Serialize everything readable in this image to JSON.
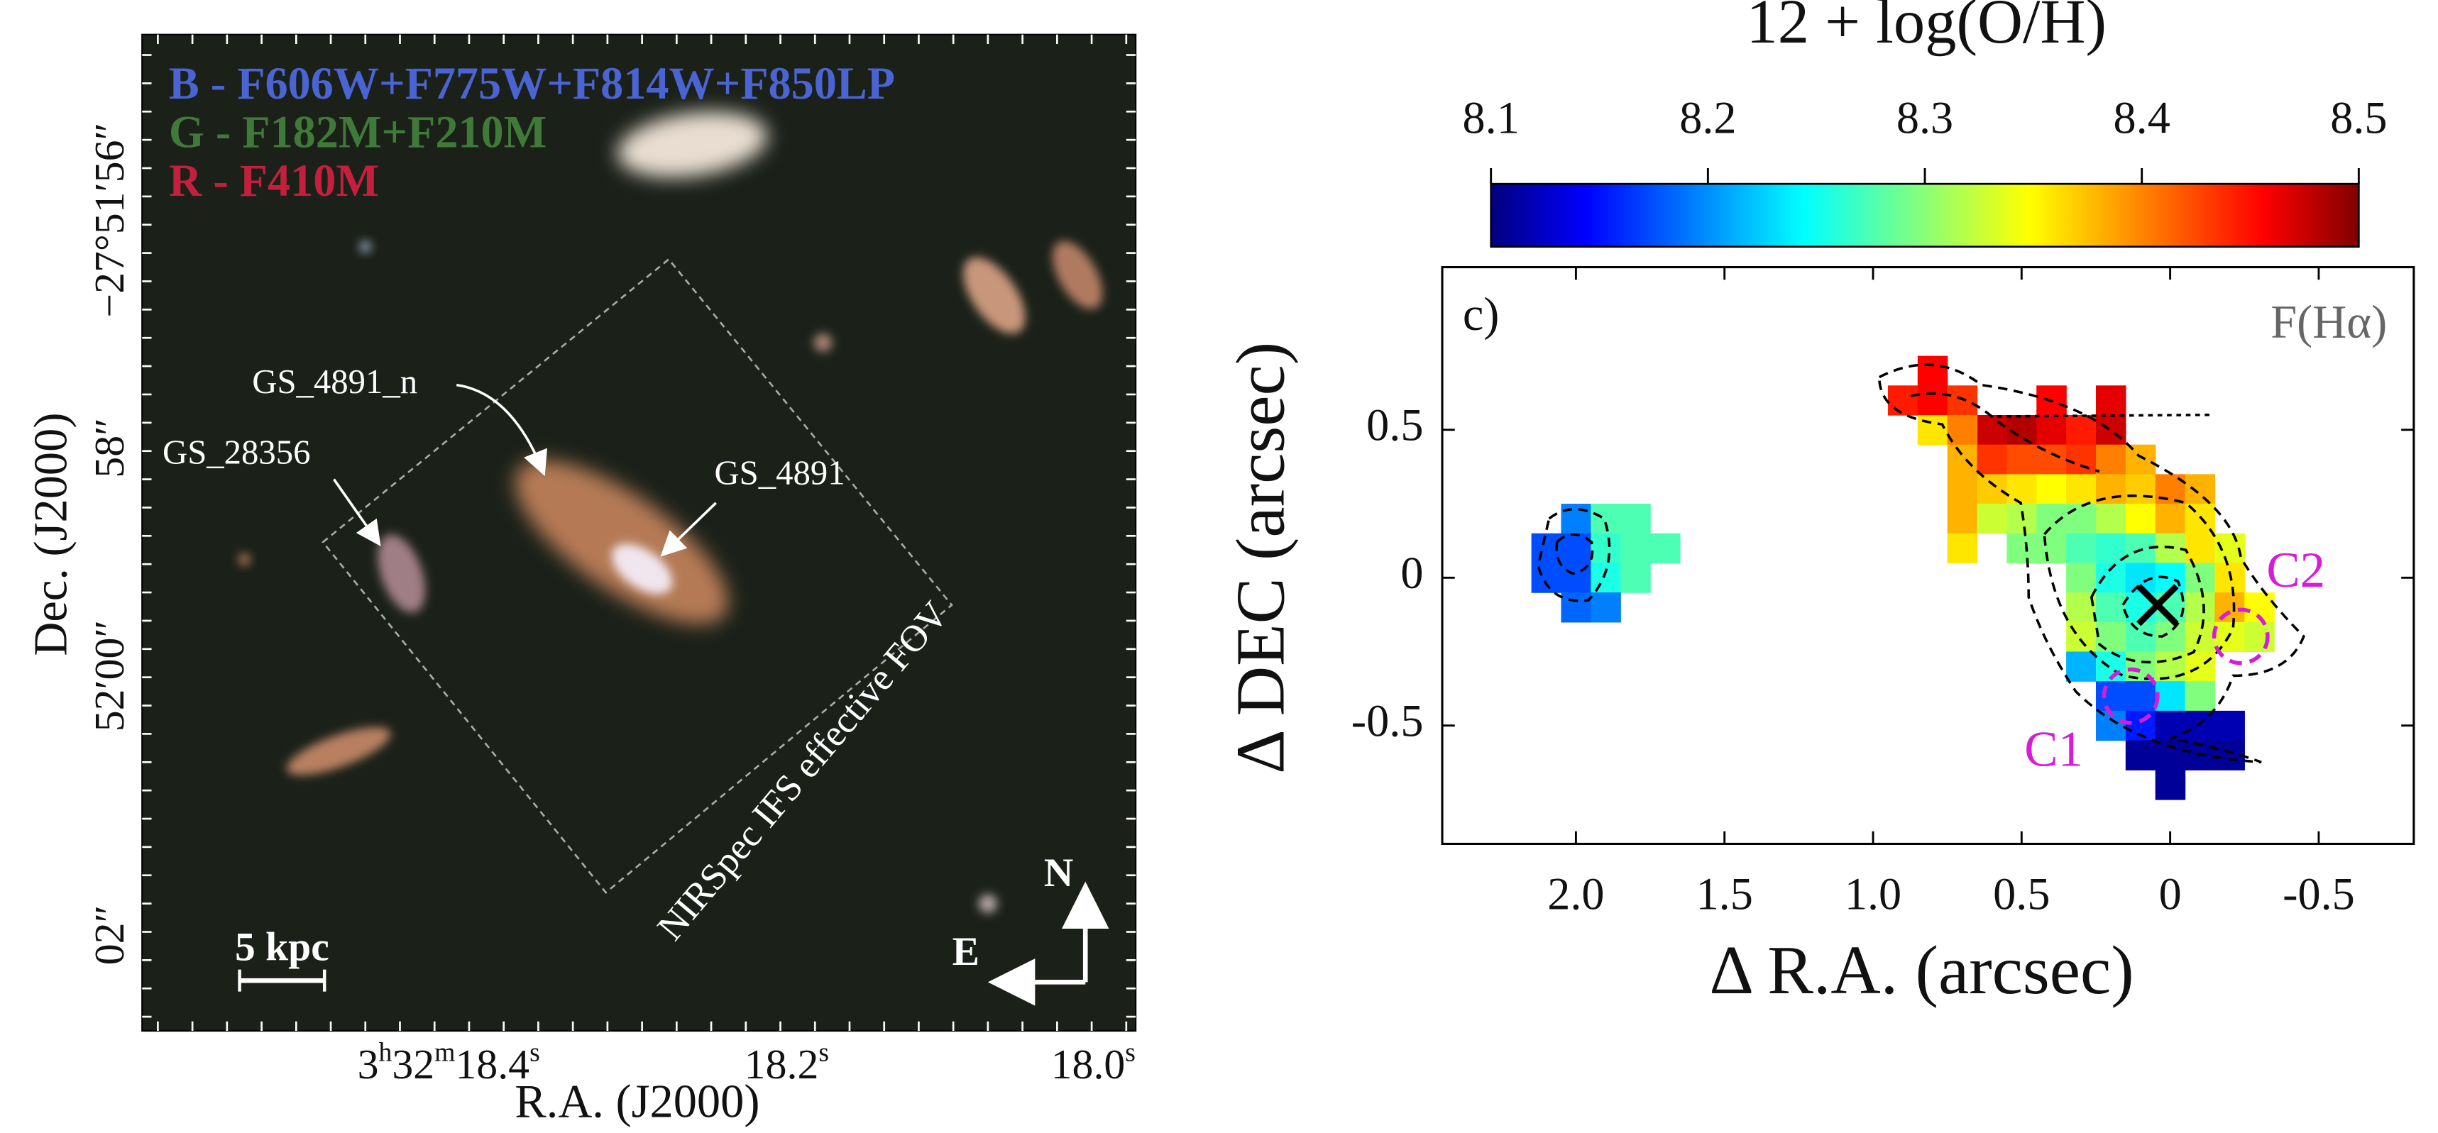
{
  "left_panel": {
    "legend": [
      {
        "text": "B - F606W+F775W+F814W+F850LP",
        "color": "#4a64d4"
      },
      {
        "text": "G - F182M+F210M",
        "color": "#3f7a38"
      },
      {
        "text": "R - F410M",
        "color": "#c4203e"
      }
    ],
    "labels": [
      "GS_4891_n",
      "GS_28356",
      "GS_4891"
    ],
    "fov_label": "NIRSpec IFS effective FOV",
    "scale_bar": "5 kpc",
    "compass": [
      "N",
      "E"
    ],
    "xlabel": "R.A. (J2000)",
    "ylabel": "Dec. (J2000)",
    "xticks": [
      [
        "3",
        "h",
        "32",
        "m",
        "18.4",
        "s"
      ],
      [
        "18.2",
        "s"
      ],
      [
        "18.0",
        "s"
      ]
    ],
    "yticks": [
      "−27°51′56″",
      "58″",
      "52′00″",
      "02″"
    ]
  },
  "chart_data": {
    "type": "heatmap",
    "colorbar_label": "12 + log(O/H)",
    "panel_label": "c)",
    "annotation": "F(Hα)",
    "clump_labels": [
      "C1",
      "C2"
    ],
    "xlabel": "Δ R.A. (arcsec)",
    "ylabel": "Δ DEC (arcsec)",
    "xlim": [
      2.45,
      -0.82
    ],
    "ylim": [
      -0.9,
      1.05
    ],
    "xticks": [
      {
        "value": 2,
        "label": "2.0"
      },
      1.5,
      {
        "value": 1,
        "label": "1.0"
      },
      0.5,
      0,
      -0.5
    ],
    "yticks": [
      0.5,
      0,
      -0.5
    ],
    "clim": [
      8.1,
      8.5
    ],
    "cticks": [
      8.1,
      8.2,
      8.3,
      8.4,
      8.5
    ],
    "x": [
      2.0,
      1.9,
      1.8,
      2.1,
      2.0,
      1.9,
      1.8,
      1.7,
      2.1,
      2.0,
      1.9,
      1.8,
      2.0,
      1.9,
      0.8,
      0.9,
      0.8,
      0.7,
      0.6,
      0.5,
      0.4,
      0.3,
      0.2,
      0.4,
      0.2,
      0.8,
      0.7,
      0.7,
      0.6,
      0.5,
      0.4,
      0.3,
      0.2,
      0.1,
      0.7,
      0.7,
      0.7,
      0.6,
      0.5,
      0.4,
      0.3,
      0.2,
      0.1,
      0.0,
      -0.1,
      0.6,
      0.5,
      0.4,
      0.3,
      0.2,
      0.1,
      0.0,
      -0.1,
      0.5,
      0.4,
      0.3,
      0.2,
      0.1,
      0.0,
      -0.1,
      -0.2,
      0.3,
      0.2,
      0.1,
      0.0,
      -0.1,
      -0.2,
      0.3,
      0.2,
      0.1,
      0.0,
      -0.1,
      -0.2,
      -0.3,
      0.3,
      0.2,
      0.1,
      0.0,
      -0.1,
      -0.2,
      -0.3,
      0.3,
      0.2,
      0.1,
      0.0,
      -0.1,
      0.2,
      0.1,
      0.0,
      -0.1,
      0.2,
      0.1,
      0.0,
      -0.1,
      -0.2,
      0.1,
      0.0,
      -0.1,
      -0.2,
      0.0
    ],
    "y": [
      0.2,
      0.2,
      0.2,
      0.1,
      0.1,
      0.1,
      0.1,
      0.1,
      0.0,
      0.0,
      0.0,
      0.0,
      -0.1,
      -0.1,
      0.7,
      0.6,
      0.6,
      0.6,
      0.5,
      0.5,
      0.5,
      0.5,
      0.5,
      0.6,
      0.6,
      0.5,
      0.5,
      0.4,
      0.4,
      0.4,
      0.4,
      0.4,
      0.4,
      0.4,
      0.3,
      0.2,
      0.1,
      0.3,
      0.3,
      0.3,
      0.3,
      0.3,
      0.3,
      0.3,
      0.3,
      0.2,
      0.2,
      0.2,
      0.2,
      0.2,
      0.2,
      0.2,
      0.2,
      0.1,
      0.1,
      0.1,
      0.1,
      0.1,
      0.1,
      0.1,
      0.1,
      0.0,
      0.0,
      0.0,
      0.0,
      0.0,
      0.0,
      -0.1,
      -0.1,
      -0.1,
      -0.1,
      -0.1,
      -0.1,
      -0.1,
      -0.2,
      -0.2,
      -0.2,
      -0.2,
      -0.2,
      -0.2,
      -0.2,
      -0.3,
      -0.3,
      -0.3,
      -0.3,
      -0.3,
      -0.4,
      -0.4,
      -0.4,
      -0.4,
      -0.5,
      -0.5,
      -0.5,
      -0.5,
      -0.5,
      -0.6,
      -0.6,
      -0.6,
      -0.6,
      -0.7
    ],
    "values": [
      8.2,
      8.28,
      8.28,
      8.18,
      8.18,
      8.27,
      8.28,
      8.28,
      8.18,
      8.18,
      8.26,
      8.28,
      8.19,
      8.2,
      8.45,
      8.44,
      8.45,
      8.43,
      8.47,
      8.48,
      8.46,
      8.44,
      8.47,
      8.45,
      8.46,
      8.36,
      8.4,
      8.38,
      8.43,
      8.42,
      8.42,
      8.43,
      8.4,
      8.38,
      8.38,
      8.38,
      8.36,
      8.37,
      8.36,
      8.35,
      8.36,
      8.38,
      8.37,
      8.4,
      8.38,
      8.33,
      8.32,
      8.3,
      8.3,
      8.32,
      8.35,
      8.38,
      8.36,
      8.3,
      8.3,
      8.28,
      8.27,
      8.28,
      8.32,
      8.36,
      8.34,
      8.3,
      8.26,
      8.24,
      8.25,
      8.3,
      8.36,
      8.32,
      8.28,
      8.26,
      8.28,
      8.32,
      8.38,
      8.35,
      8.33,
      8.3,
      8.28,
      8.3,
      8.33,
      8.34,
      8.33,
      8.22,
      8.26,
      8.3,
      8.32,
      8.34,
      8.18,
      8.18,
      8.24,
      8.3,
      8.2,
      8.16,
      8.12,
      8.12,
      8.12,
      8.11,
      8.11,
      8.11,
      8.11,
      8.11
    ]
  }
}
